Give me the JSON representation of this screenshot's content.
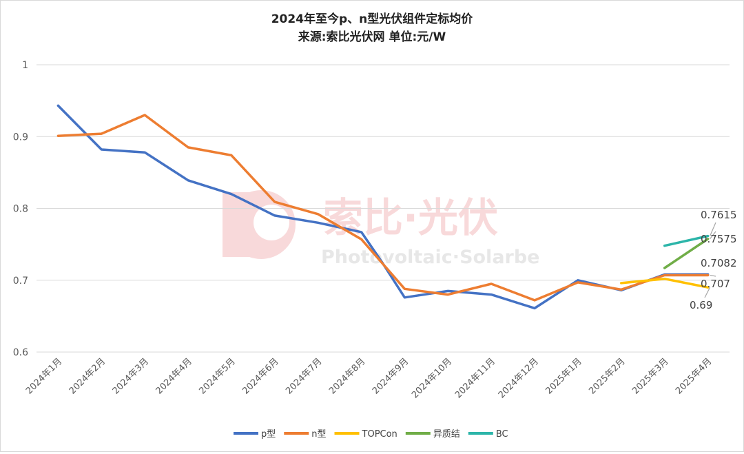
{
  "chart_data": {
    "type": "line",
    "title": "2024年至今p、n型光伏组件定标均价",
    "subtitle": "来源:索比光伏网 单位:元/W",
    "watermark": {
      "cn": "索比·光伏",
      "en": "Photovoltaic·Solarbe"
    },
    "categories": [
      "2024年1月",
      "2024年2月",
      "2024年3月",
      "2024年4月",
      "2024年5月",
      "2024年6月",
      "2024年7月",
      "2024年8月",
      "2024年9月",
      "2024年10月",
      "2024年11月",
      "2024年12月",
      "2025年1月",
      "2025年2月",
      "2025年3月",
      "2025年4月"
    ],
    "y_ticks": [
      "0.6",
      "0.7",
      "0.8",
      "0.9",
      "1"
    ],
    "ylim": [
      0.6,
      1.0
    ],
    "grid": true,
    "legend_position": "bottom",
    "series": [
      {
        "name": "p型",
        "color": "#4472C4",
        "points": [
          [
            0,
            0.943
          ],
          [
            1,
            0.882
          ],
          [
            2,
            0.878
          ],
          [
            3,
            0.839
          ],
          [
            4,
            0.82
          ],
          [
            5,
            0.79
          ],
          [
            6,
            0.78
          ],
          [
            7,
            0.767
          ],
          [
            7.5,
            0.723
          ],
          [
            8,
            0.676
          ],
          [
            9,
            0.685
          ],
          [
            10,
            0.68
          ],
          [
            11,
            0.661
          ],
          [
            12,
            0.7
          ],
          [
            13,
            0.686
          ],
          [
            14,
            0.708
          ],
          [
            15,
            0.7082
          ]
        ]
      },
      {
        "name": "n型",
        "color": "#ED7D31",
        "points": [
          [
            0,
            0.901
          ],
          [
            1,
            0.904
          ],
          [
            2,
            0.93
          ],
          [
            3,
            0.885
          ],
          [
            4,
            0.874
          ],
          [
            5,
            0.809
          ],
          [
            6,
            0.792
          ],
          [
            7,
            0.757
          ],
          [
            8,
            0.688
          ],
          [
            9,
            0.68
          ],
          [
            10,
            0.695
          ],
          [
            11,
            0.672
          ],
          [
            12,
            0.697
          ],
          [
            13,
            0.687
          ],
          [
            14,
            0.707
          ],
          [
            15,
            0.707
          ]
        ]
      },
      {
        "name": "TOPCon",
        "color": "#FFC000",
        "points": [
          [
            13,
            0.696
          ],
          [
            14,
            0.702
          ],
          [
            15,
            0.69
          ]
        ]
      },
      {
        "name": "异质结",
        "color": "#70AD47",
        "points": [
          [
            14,
            0.717
          ],
          [
            15,
            0.7575
          ]
        ]
      },
      {
        "name": "BC",
        "color": "#2CB5A9",
        "points": [
          [
            14,
            0.748
          ],
          [
            15,
            0.7615
          ]
        ]
      }
    ],
    "annotations": [
      {
        "text": "0.7615",
        "value": 0.7615,
        "series": "BC"
      },
      {
        "text": "0.7575",
        "value": 0.7575,
        "series": "异质结"
      },
      {
        "text": "0.7082",
        "value": 0.7082,
        "series": "p型"
      },
      {
        "text": "0.707",
        "value": 0.707,
        "series": "n型"
      },
      {
        "text": "0.69",
        "value": 0.69,
        "series": "TOPCon"
      }
    ]
  }
}
